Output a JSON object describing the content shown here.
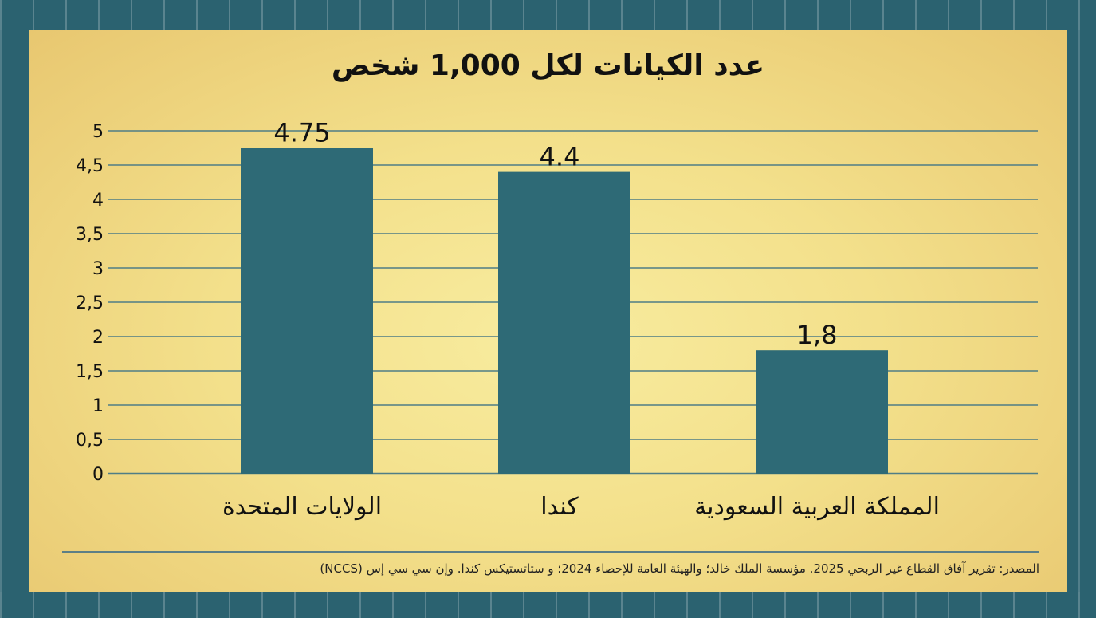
{
  "chart_data": {
    "type": "bar",
    "title": "عدد الكيانات لكل 1,000 شخص",
    "categories": [
      "الولايات المتحدة",
      "كندا",
      "المملكة العربية السعودية"
    ],
    "values": [
      4.75,
      4.4,
      1.8
    ],
    "data_labels": [
      "4.75",
      "4.4",
      "1,8"
    ],
    "ylim": [
      0,
      5
    ],
    "yticks": [
      "0",
      "0,5",
      "1",
      "1,5",
      "2",
      "2,5",
      "3",
      "3,5",
      "4",
      "4,5",
      "5"
    ],
    "xlabel": "",
    "ylabel": "",
    "grid": true,
    "legend": "none",
    "colors": {
      "bar": "#2e6a76",
      "grid": "#4f7d86",
      "panel": "#f3e08b",
      "frame": "#2b6270"
    }
  },
  "footer": {
    "source": "المصدر: تقرير آفاق القطاع غير الربحي 2025. مؤسسة الملك خالد؛ والهيئة العامة للإحصاء 2024؛ و ستاتستيكس كندا. وإن سي سي إس (NCCS)"
  }
}
